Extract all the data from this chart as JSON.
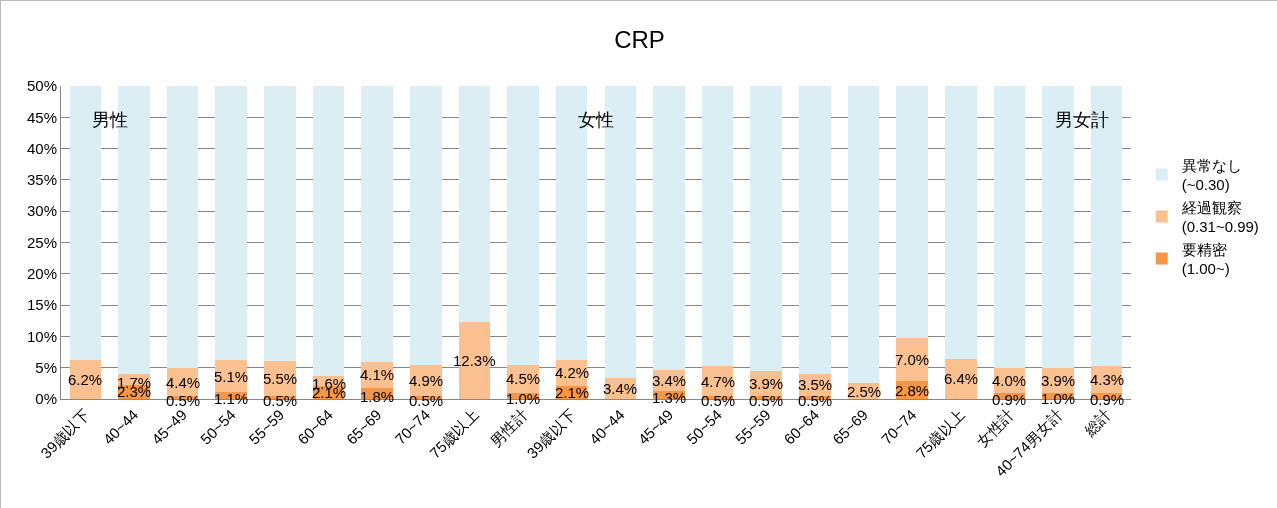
{
  "chart_data": {
    "type": "bar",
    "title": "CRP",
    "stacked": true,
    "categories": [
      "39歳以下",
      "40~44",
      "45~49",
      "50~54",
      "55~59",
      "60~64",
      "65~69",
      "70~74",
      "75歳以上",
      "男性計",
      "39歳以下",
      "40~44",
      "45~49",
      "50~54",
      "55~59",
      "60~64",
      "65~69",
      "70~74",
      "75歳以上",
      "女性計",
      "40~74男女計",
      "総計"
    ],
    "series": [
      {
        "name": "要精密 (1.00~)",
        "color": "#f79646",
        "values": [
          null,
          2.3,
          0.5,
          1.1,
          0.5,
          2.1,
          1.8,
          0.5,
          null,
          1.0,
          2.1,
          null,
          1.3,
          0.5,
          0.5,
          0.5,
          null,
          2.8,
          null,
          0.9,
          1.0,
          0.9
        ],
        "value_labels": [
          null,
          "2.3%",
          "0.5%",
          "1.1%",
          "0.5%",
          "2.1%",
          "1.8%",
          "0.5%",
          null,
          "1.0%",
          "2.1%",
          null,
          "1.3%",
          "0.5%",
          "0.5%",
          "0.5%",
          null,
          "2.8%",
          null,
          "0.9%",
          "1.0%",
          "0.9%"
        ]
      },
      {
        "name": "経過観察 (0.31~0.99)",
        "color": "#fac090",
        "values": [
          6.2,
          1.7,
          4.4,
          5.1,
          5.5,
          1.6,
          4.1,
          4.9,
          12.3,
          4.5,
          4.2,
          3.4,
          3.4,
          4.7,
          3.9,
          3.5,
          2.5,
          7.0,
          6.4,
          4.0,
          3.9,
          4.3
        ],
        "value_labels": [
          "6.2%",
          "1.7%",
          "4.4%",
          "5.1%",
          "5.5%",
          "1.6%",
          "4.1%",
          "4.9%",
          "12.3%",
          "4.5%",
          "4.2%",
          "3.4%",
          "3.4%",
          "4.7%",
          "3.9%",
          "3.5%",
          "2.5%",
          "7.0%",
          "6.4%",
          "4.0%",
          "3.9%",
          "4.3%"
        ]
      },
      {
        "name": "異常なし (~0.30)",
        "color": "#daeef3",
        "values": [
          43.8,
          46.0,
          45.1,
          43.8,
          44.0,
          46.3,
          44.1,
          44.6,
          37.7,
          44.5,
          43.7,
          46.6,
          45.3,
          44.8,
          45.6,
          46.0,
          47.5,
          40.2,
          43.6,
          45.1,
          45.1,
          44.8
        ]
      }
    ],
    "ylim": [
      0,
      50
    ],
    "yticks": [
      {
        "value": 0,
        "label": "0%"
      },
      {
        "value": 5,
        "label": "5%"
      },
      {
        "value": 10,
        "label": "10%"
      },
      {
        "value": 15,
        "label": "15%"
      },
      {
        "value": 20,
        "label": "20%"
      },
      {
        "value": 25,
        "label": "25%"
      },
      {
        "value": 30,
        "label": "30%"
      },
      {
        "value": 35,
        "label": "35%"
      },
      {
        "value": 40,
        "label": "40%"
      },
      {
        "value": 45,
        "label": "45%"
      },
      {
        "value": 50,
        "label": "50%"
      }
    ],
    "grid": "y",
    "legend": "right",
    "annotations": [
      "男性",
      "女性",
      "男女計"
    ]
  }
}
